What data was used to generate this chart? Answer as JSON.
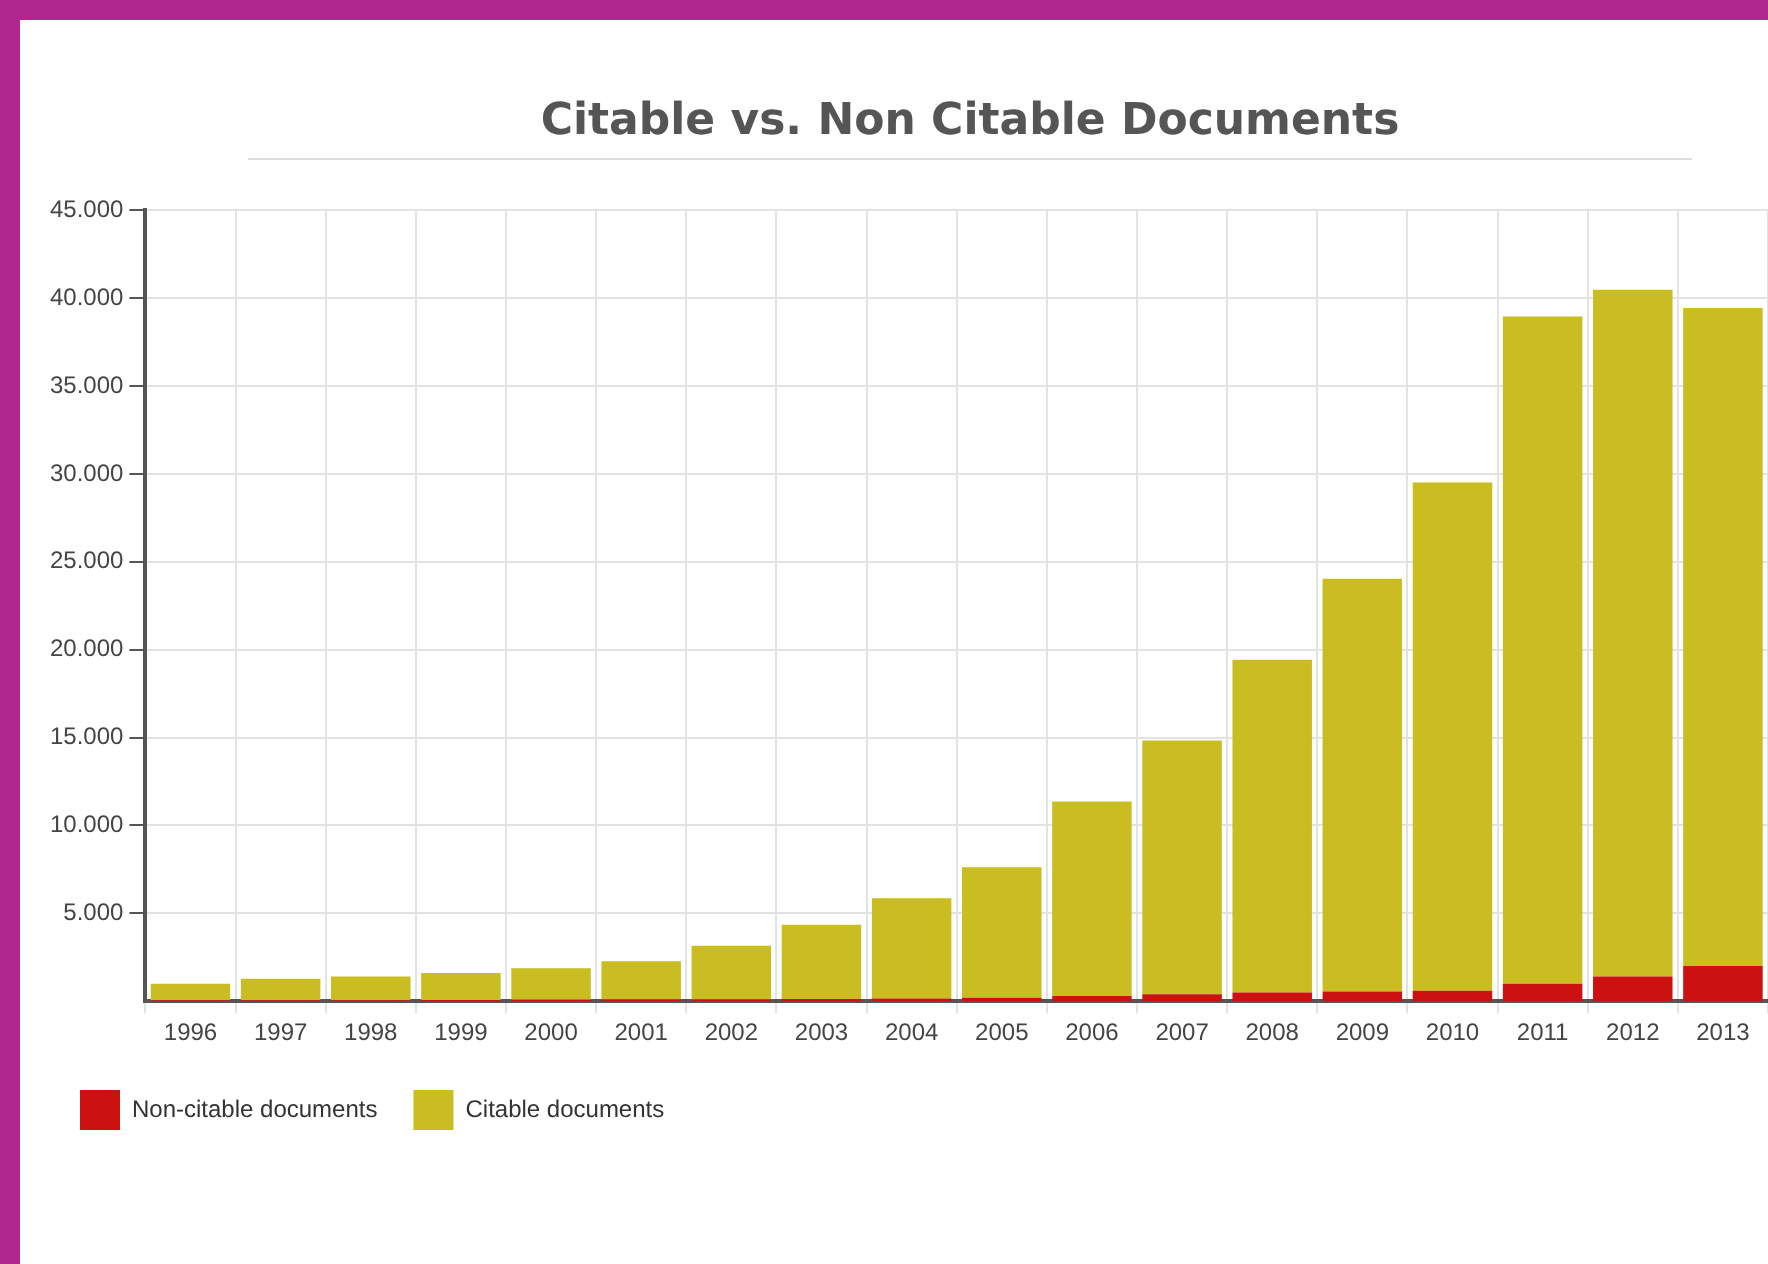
{
  "chart_data": {
    "type": "bar",
    "title": "Citable vs. Non Citable Documents",
    "categories": [
      "1996",
      "1997",
      "1998",
      "1999",
      "2000",
      "2001",
      "2002",
      "2003",
      "2004",
      "2005",
      "2006",
      "2007",
      "2008",
      "2009",
      "2010",
      "2011",
      "2012",
      "2013"
    ],
    "series": [
      {
        "name": "Non-citable documents",
        "color": "#cc1111",
        "values": [
          50,
          50,
          60,
          70,
          80,
          90,
          100,
          120,
          150,
          200,
          300,
          400,
          500,
          550,
          600,
          1000,
          1400,
          2000
        ]
      },
      {
        "name": "Citable documents",
        "color": "#c9bd22",
        "values": [
          950,
          1230,
          1340,
          1530,
          1800,
          2180,
          3050,
          4230,
          5710,
          7420,
          11060,
          14430,
          18930,
          23490,
          28910,
          37960,
          39080,
          37440
        ]
      }
    ],
    "stacked": true,
    "ylim": [
      0,
      45000
    ],
    "yticks": [
      {
        "value": 5000,
        "label": "5.000"
      },
      {
        "value": 10000,
        "label": "10.000"
      },
      {
        "value": 15000,
        "label": "15.000"
      },
      {
        "value": 20000,
        "label": "20.000"
      },
      {
        "value": 25000,
        "label": "25.000"
      },
      {
        "value": 30000,
        "label": "30.000"
      },
      {
        "value": 35000,
        "label": "35.000"
      },
      {
        "value": 40000,
        "label": "40.000"
      },
      {
        "value": 45000,
        "label": "45.000"
      }
    ],
    "grid": true,
    "legend": "bottom left"
  }
}
